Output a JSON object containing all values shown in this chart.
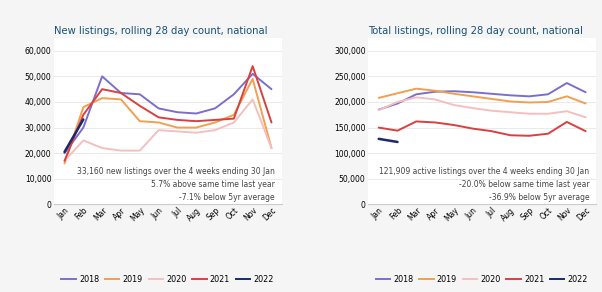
{
  "left_title": "New listings, rolling 28 day count, national",
  "right_title": "Total listings, rolling 28 day count, national",
  "months": [
    "Jan",
    "Feb",
    "Mar",
    "Apr",
    "May",
    "Jun",
    "Jul",
    "Aug",
    "Sep",
    "Oct",
    "Nov",
    "Dec"
  ],
  "colors": {
    "2018": "#7B6FCC",
    "2019": "#F0A050",
    "2020": "#F5BFBF",
    "2021": "#D94040",
    "2022": "#1A2A6C"
  },
  "new_listings": {
    "2018": [
      20000,
      30000,
      50000,
      43500,
      43000,
      37500,
      36000,
      35500,
      37500,
      43000,
      51000,
      45000
    ],
    "2019": [
      16000,
      38000,
      41500,
      41000,
      32500,
      32000,
      30000,
      30000,
      32000,
      35000,
      49000,
      22000
    ],
    "2020": [
      17000,
      25000,
      22000,
      21000,
      21000,
      29000,
      28500,
      28000,
      29000,
      32000,
      41000,
      22000
    ],
    "2021": [
      17000,
      35000,
      45000,
      43500,
      38500,
      34000,
      33000,
      32500,
      33000,
      33500,
      54000,
      32000
    ],
    "2022": [
      20500,
      33160,
      null,
      null,
      null,
      null,
      null,
      null,
      null,
      null,
      null,
      null
    ]
  },
  "total_listings": {
    "2018": [
      185000,
      197000,
      215000,
      220000,
      221000,
      219000,
      216000,
      213000,
      211000,
      215000,
      237000,
      219000
    ],
    "2019": [
      208000,
      217000,
      226000,
      222000,
      216000,
      211000,
      206000,
      201000,
      199000,
      200000,
      211000,
      197000
    ],
    "2020": [
      184000,
      200000,
      209000,
      205000,
      194000,
      188000,
      183000,
      180000,
      177000,
      177000,
      182000,
      170000
    ],
    "2021": [
      150000,
      144000,
      162000,
      160000,
      155000,
      148000,
      143000,
      135000,
      134000,
      138000,
      161000,
      143000
    ],
    "2022": [
      128000,
      121909,
      null,
      null,
      null,
      null,
      null,
      null,
      null,
      null,
      null,
      null
    ]
  },
  "left_annotation_line1": "33,160 new listings over the 4 weeks ending 30 Jan",
  "left_annotation_line2": "5.7% above same time last year",
  "left_annotation_line3": "-7.1% below 5yr average",
  "right_annotation_line1": "121,909 active listings over the 4 weeks ending 30 Jan",
  "right_annotation_line2": "-20.0% below same time last year",
  "right_annotation_line3": "-36.9% below 5yr average",
  "background_color": "#f5f5f5",
  "panel_color": "#ffffff",
  "title_color": "#1a5276",
  "annotation_color": "#444444",
  "legend_years": [
    "2018",
    "2019",
    "2020",
    "2021",
    "2022"
  ],
  "left_ylim": [
    0,
    65000
  ],
  "left_yticks": [
    0,
    10000,
    20000,
    30000,
    40000,
    50000,
    60000
  ],
  "right_ylim": [
    0,
    325000
  ],
  "right_yticks": [
    0,
    50000,
    100000,
    150000,
    200000,
    250000,
    300000
  ]
}
